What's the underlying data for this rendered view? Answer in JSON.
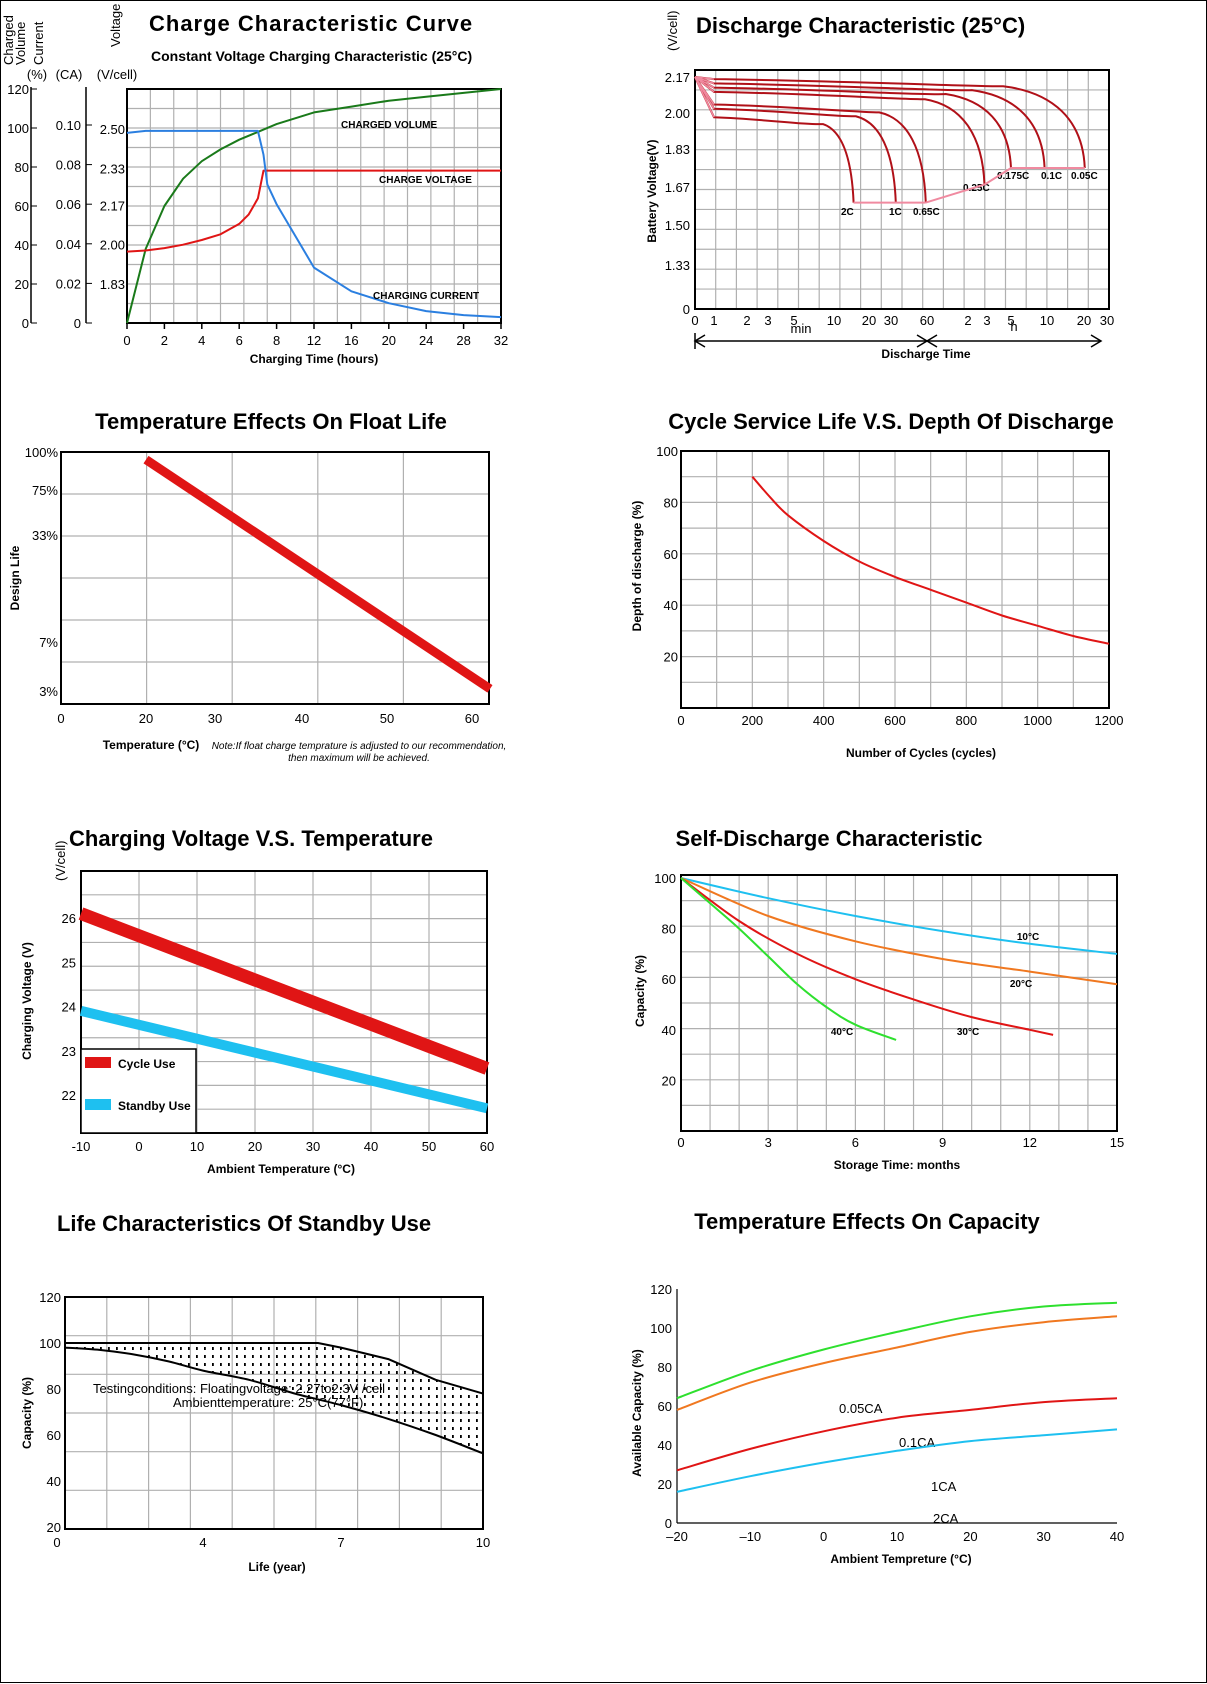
{
  "colors": {
    "red": "#e01515",
    "darkred": "#b01018",
    "pink": "#f08aa0",
    "green": "#1a7a1a",
    "blue": "#2b7fe0",
    "lime": "#2ee02e",
    "cyan": "#1ec0f0",
    "orange": "#f07820"
  },
  "chart_data": [
    {
      "id": "charge",
      "type": "line",
      "title": "Charge Characteristic  Curve",
      "subtitle": "Constant Voltage Charging Characteristic (25°C)",
      "xlabel": "Charging Time (hours)",
      "axis_headers": [
        "Charged Volume (%)",
        "Current (CA)",
        "Voltage (V/cell)"
      ],
      "xticks": [
        "0",
        "2",
        "4",
        "6",
        "8",
        "12",
        "16",
        "20",
        "24",
        "28",
        "32"
      ],
      "volume_ticks": [
        "0",
        "20",
        "40",
        "60",
        "80",
        "100",
        "120"
      ],
      "current_ticks": [
        "0",
        "0.02",
        "0.04",
        "0.06",
        "0.08",
        "0.10"
      ],
      "voltage_ticks": [
        "1.83",
        "2.00",
        "2.17",
        "2.33",
        "2.50"
      ],
      "series": [
        {
          "name": "CHARGED VOLUME",
          "color": "green",
          "x": [
            0,
            1,
            2,
            3,
            4,
            5,
            6,
            7,
            8,
            12,
            16,
            20,
            24,
            28,
            32
          ],
          "y": [
            0,
            38,
            60,
            74,
            83,
            89,
            94,
            98,
            102,
            108,
            111,
            114,
            116,
            118,
            120
          ]
        },
        {
          "name": "CHARGE VOLTAGE",
          "color": "red",
          "x": [
            0,
            1,
            2,
            3,
            4,
            5,
            6,
            6.5,
            7,
            7.3,
            8,
            12,
            16,
            20,
            24,
            28,
            32
          ],
          "y": [
            1.97,
            1.975,
            1.985,
            2.0,
            2.02,
            2.045,
            2.09,
            2.13,
            2.2,
            2.32,
            2.32,
            2.32,
            2.32,
            2.32,
            2.32,
            2.32,
            2.32
          ]
        },
        {
          "name": "CHARGING CURRENT",
          "color": "blue",
          "x": [
            0,
            1,
            2,
            4,
            6,
            7,
            7.3,
            7.5,
            8,
            12,
            16,
            20,
            24,
            28,
            32
          ],
          "y": [
            0.096,
            0.097,
            0.097,
            0.097,
            0.097,
            0.097,
            0.085,
            0.07,
            0.06,
            0.028,
            0.016,
            0.01,
            0.006,
            0.004,
            0.003
          ]
        }
      ]
    },
    {
      "id": "discharge",
      "type": "line",
      "title": "Discharge Characteristic (25°C)",
      "ylabel": "Battery Voltage(V)",
      "unit": "(V/cell)",
      "xlabel": "Discharge Time",
      "yticks": [
        "0",
        "1.33",
        "1.50",
        "1.67",
        "1.83",
        "2.00",
        "2.17"
      ],
      "xticks": [
        "0",
        "1",
        "2",
        "3",
        "5",
        "10",
        "20",
        "30",
        "60",
        "2",
        "3",
        "5",
        "10",
        "20",
        "30"
      ],
      "range_labels": [
        "min",
        "h"
      ],
      "series": [
        {
          "name": "2C",
          "end": 15.6,
          "final": 1.6,
          "start": 1.98
        },
        {
          "name": "1C",
          "end": 34,
          "final": 1.6,
          "start": 2.02
        },
        {
          "name": "0.65C",
          "end": 59,
          "final": 1.6,
          "start": 2.04
        },
        {
          "name": "0.25C",
          "end": 172,
          "final": 1.68,
          "start": 2.1
        },
        {
          "name": "0.175C",
          "end": 300,
          "final": 1.75,
          "start": 2.12
        },
        {
          "name": "0.1C",
          "end": 580,
          "final": 1.75,
          "start": 2.14
        },
        {
          "name": "0.05C",
          "end": 1220,
          "final": 1.75,
          "start": 2.16
        }
      ]
    },
    {
      "id": "float",
      "type": "line",
      "title": "Temperature Effects On Float Life",
      "ylabel": "Design Life",
      "xlabel": "Temperature (°C)",
      "yticks": [
        "3%",
        "7%",
        "33%",
        "75%",
        "100%"
      ],
      "xticks": [
        "0",
        "20",
        "30",
        "40",
        "50",
        "60"
      ],
      "note": "Note:If float charge temprature is adjusted to our recommendation, then maximum will be achieved.",
      "series": [
        {
          "x": [
            20,
            62
          ],
          "y_pos": [
            0.97,
            0.06
          ]
        }
      ]
    },
    {
      "id": "cycle",
      "type": "line",
      "title": "Cycle Service Life  V.S. Depth Of Discharge",
      "ylabel": "Depth of discharge (%)",
      "xlabel": "Number of Cycles (cycles)",
      "yticks": [
        "20",
        "40",
        "60",
        "80",
        "100"
      ],
      "xticks": [
        "0",
        "200",
        "400",
        "600",
        "800",
        "1000",
        "1200"
      ],
      "series": [
        {
          "x": [
            200,
            250,
            300,
            400,
            500,
            600,
            700,
            800,
            900,
            1000,
            1100,
            1200
          ],
          "y": [
            90,
            82,
            75,
            65,
            57,
            51,
            46,
            41,
            36,
            32,
            28,
            25
          ]
        }
      ]
    },
    {
      "id": "chargingvolt",
      "type": "line",
      "title": "Charging Voltage V.S. Temperature",
      "ylabel": "Charging Voltage (V)",
      "unit": "(V/cell)",
      "xlabel": "Ambient Temperature (°C)",
      "yticks": [
        "22",
        "23",
        "24",
        "25",
        "26"
      ],
      "xticks": [
        "-10",
        "0",
        "10",
        "20",
        "30",
        "40",
        "50",
        "60"
      ],
      "series": [
        {
          "name": "Cycle Use",
          "color": "red",
          "x": [
            -10,
            60
          ],
          "y": [
            26.1,
            22.6
          ]
        },
        {
          "name": "Standby Use",
          "color": "cyan",
          "x": [
            -10,
            60
          ],
          "y": [
            23.9,
            21.7
          ]
        }
      ]
    },
    {
      "id": "selfdischarge",
      "type": "line",
      "title": "Self-Discharge Characteristic",
      "ylabel": "Capacity (%)",
      "xlabel": "Storage Time: months",
      "yticks": [
        "20",
        "40",
        "60",
        "80",
        "100"
      ],
      "xticks": [
        "0",
        "3",
        "6",
        "9",
        "12",
        "15"
      ],
      "series": [
        {
          "name": "10°C",
          "color": "cyan",
          "x": [
            0,
            3,
            6,
            9,
            12,
            15
          ],
          "y": [
            100,
            92,
            85,
            79,
            74,
            70
          ]
        },
        {
          "name": "20°C",
          "color": "orange",
          "x": [
            0,
            3,
            6,
            9,
            12,
            15
          ],
          "y": [
            100,
            85,
            75,
            68,
            63,
            58
          ]
        },
        {
          "name": "30°C",
          "color": "red",
          "x": [
            0,
            2,
            4,
            6,
            8,
            10,
            12,
            12.8
          ],
          "y": [
            100,
            83,
            70,
            60,
            52,
            45,
            40,
            38
          ]
        },
        {
          "name": "40°C",
          "color": "lime",
          "x": [
            0,
            1,
            2,
            3,
            4,
            5,
            6,
            7.4
          ],
          "y": [
            100,
            90,
            80,
            69,
            58,
            49,
            42,
            36
          ]
        }
      ]
    },
    {
      "id": "standbylife",
      "type": "area",
      "title": "Life Characteristics Of Standby Use",
      "ylabel": "Capacity (%)",
      "xlabel": "Life (year)",
      "yticks": [
        "20",
        "40",
        "60",
        "80",
        "100",
        "120"
      ],
      "xticks": [
        "0",
        "4",
        "7",
        "10"
      ],
      "conditions": [
        "Testingconditions: Floatingvoltage: 2.27to2.3V /cell",
        "Ambienttemperature:     25°C(77°F)"
      ],
      "series": [
        {
          "name": "upper",
          "x": [
            0,
            2,
            4,
            6,
            6.5,
            7,
            8,
            9,
            10
          ],
          "y": [
            100,
            100,
            100,
            100,
            100,
            98,
            93,
            84,
            78
          ]
        },
        {
          "name": "lower",
          "x": [
            0,
            1,
            2,
            3,
            4,
            5,
            6,
            7,
            8,
            9,
            10
          ],
          "y": [
            98,
            97,
            95,
            92,
            88,
            84,
            78,
            73,
            67,
            60,
            52
          ]
        }
      ]
    },
    {
      "id": "tempcapacity",
      "type": "line",
      "title": "Temperature Effects On Capacity",
      "ylabel": "Available Capacity (%)",
      "xlabel": "Ambient Tempreture   (°C)",
      "yticks": [
        "0",
        "20",
        "40",
        "60",
        "80",
        "100",
        "120"
      ],
      "xticks": [
        "–20",
        "–10",
        "0",
        "10",
        "20",
        "30",
        "40"
      ],
      "series": [
        {
          "name": "0.05CA",
          "color": "lime",
          "x": [
            -20,
            -10,
            0,
            10,
            20,
            30,
            40
          ],
          "y": [
            64,
            78,
            89,
            98,
            106,
            111,
            113
          ]
        },
        {
          "name": "0.1CA",
          "color": "orange",
          "x": [
            -20,
            -10,
            0,
            10,
            20,
            30,
            40
          ],
          "y": [
            58,
            72,
            82,
            90,
            98,
            103,
            106
          ]
        },
        {
          "name": "1CA",
          "color": "red",
          "x": [
            -20,
            -10,
            0,
            10,
            20,
            30,
            40
          ],
          "y": [
            27,
            38,
            47,
            54,
            58,
            62,
            64
          ]
        },
        {
          "name": "2CA",
          "color": "cyan",
          "x": [
            -20,
            -10,
            0,
            10,
            20,
            30,
            40
          ],
          "y": [
            16,
            24,
            31,
            37,
            42,
            45,
            48
          ]
        }
      ]
    }
  ]
}
